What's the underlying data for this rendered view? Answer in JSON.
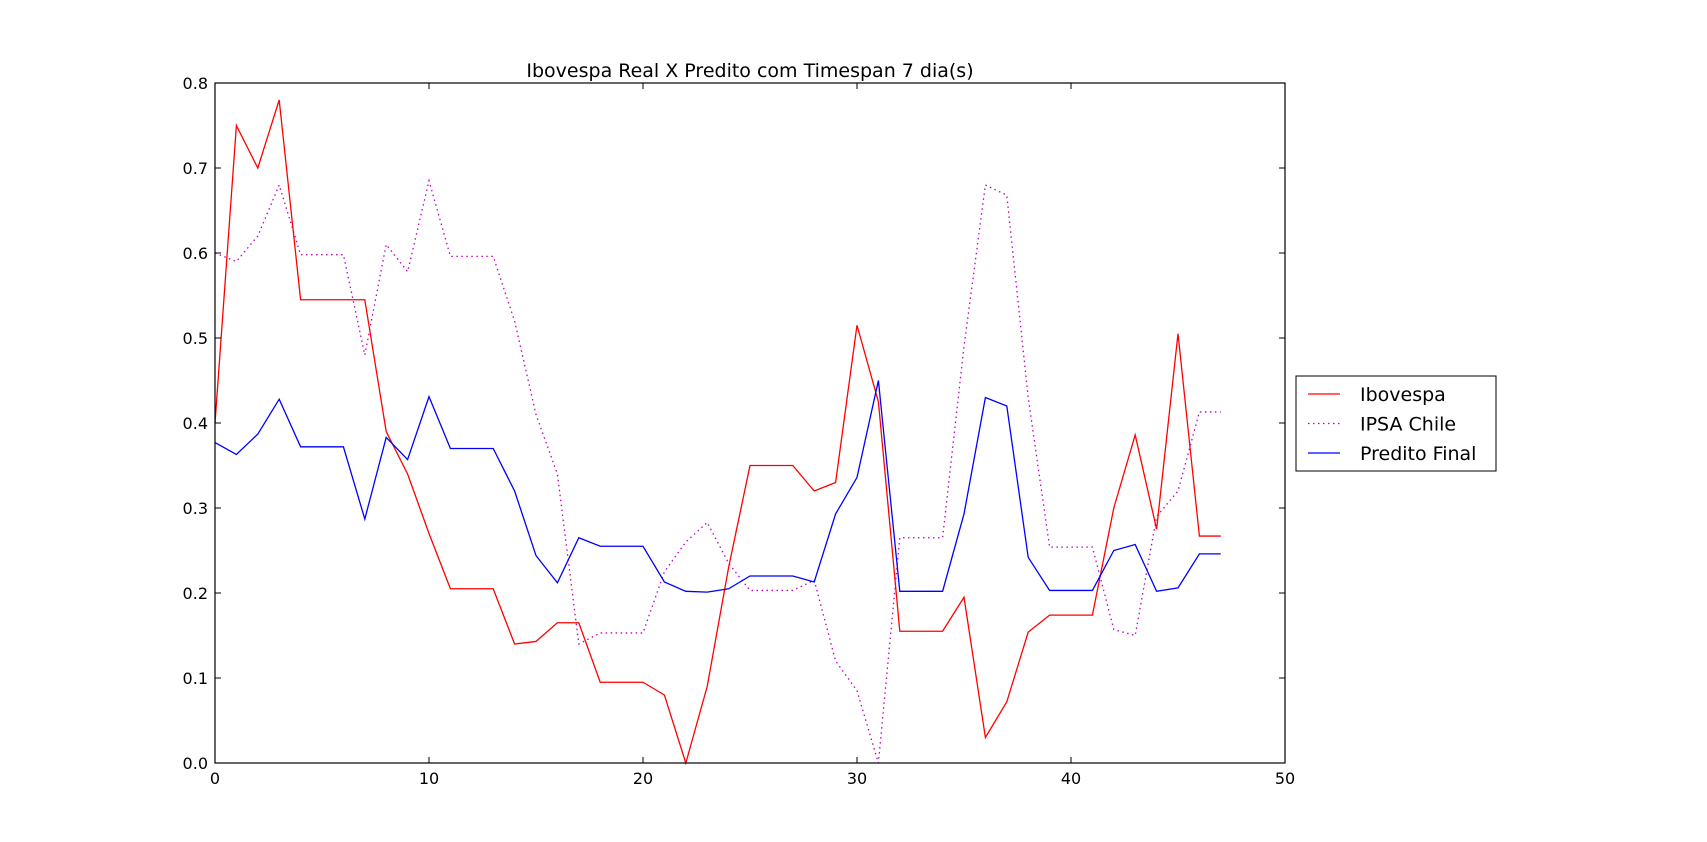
{
  "chart_data": {
    "type": "line",
    "title": "Ibovespa Real X Predito com Timespan 7 dia(s)",
    "xlabel": "",
    "ylabel": "",
    "xlim": [
      0,
      50
    ],
    "ylim": [
      0.0,
      0.8
    ],
    "xticks": [
      "0",
      "10",
      "20",
      "30",
      "40",
      "50"
    ],
    "yticks": [
      "0.0",
      "0.1",
      "0.2",
      "0.3",
      "0.4",
      "0.5",
      "0.6",
      "0.7",
      "0.8"
    ],
    "grid": false,
    "legend_position": "right",
    "x": [
      0,
      1,
      2,
      3,
      4,
      5,
      6,
      7,
      8,
      9,
      10,
      11,
      12,
      13,
      14,
      15,
      16,
      17,
      18,
      19,
      20,
      21,
      22,
      23,
      24,
      25,
      26,
      27,
      28,
      29,
      30,
      31,
      32,
      33,
      34,
      35,
      36,
      37,
      38,
      39,
      40,
      41,
      42,
      43,
      44,
      45,
      46,
      47
    ],
    "series": [
      {
        "name": "Ibovespa",
        "color": "#ff0000",
        "style": "solid",
        "values": [
          0.4,
          0.75,
          0.7,
          0.78,
          0.545,
          0.545,
          0.545,
          0.545,
          0.39,
          0.34,
          0.27,
          0.205,
          0.205,
          0.205,
          0.14,
          0.143,
          0.165,
          0.165,
          0.095,
          0.095,
          0.095,
          0.08,
          0.0,
          0.09,
          0.23,
          0.35,
          0.35,
          0.35,
          0.32,
          0.33,
          0.515,
          0.425,
          0.155,
          0.155,
          0.155,
          0.195,
          0.03,
          0.072,
          0.154,
          0.174,
          0.174,
          0.174,
          0.3,
          0.386,
          0.275,
          0.505,
          0.267,
          0.267
        ]
      },
      {
        "name": "IPSA Chile",
        "color": "#bf00bf",
        "style": "dotted",
        "values": [
          0.6,
          0.59,
          0.62,
          0.68,
          0.598,
          0.598,
          0.598,
          0.48,
          0.61,
          0.578,
          0.685,
          0.596,
          0.596,
          0.596,
          0.52,
          0.41,
          0.34,
          0.14,
          0.153,
          0.153,
          0.153,
          0.225,
          0.26,
          0.283,
          0.235,
          0.203,
          0.203,
          0.203,
          0.215,
          0.12,
          0.085,
          0.0,
          0.265,
          0.265,
          0.265,
          0.49,
          0.68,
          0.668,
          0.43,
          0.254,
          0.254,
          0.254,
          0.157,
          0.15,
          0.29,
          0.32,
          0.413,
          0.413
        ]
      },
      {
        "name": "Predito Final",
        "color": "#0000ff",
        "style": "solid",
        "values": [
          0.377,
          0.363,
          0.387,
          0.428,
          0.372,
          0.372,
          0.372,
          0.287,
          0.383,
          0.357,
          0.431,
          0.37,
          0.37,
          0.37,
          0.32,
          0.244,
          0.212,
          0.265,
          0.255,
          0.255,
          0.255,
          0.213,
          0.202,
          0.201,
          0.205,
          0.22,
          0.22,
          0.22,
          0.213,
          0.293,
          0.336,
          0.45,
          0.202,
          0.202,
          0.202,
          0.293,
          0.43,
          0.42,
          0.242,
          0.203,
          0.203,
          0.203,
          0.25,
          0.257,
          0.202,
          0.206,
          0.246,
          0.246
        ]
      }
    ]
  }
}
